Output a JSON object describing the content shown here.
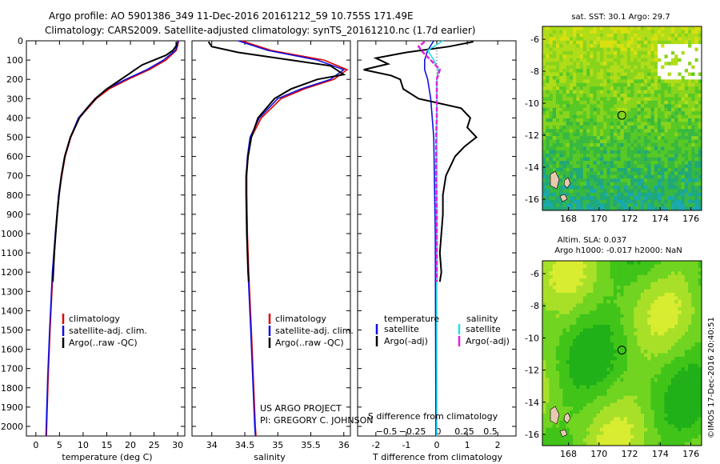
{
  "header": {
    "line1": "Argo profile: AO 5901386_349 11-Dec-2016 20161212_59 10.755S 171.49E",
    "line2": "Climatology: CARS2009. Satellite-adjusted climatology: synTS_20161210.nc (1.7d earlier)"
  },
  "colors": {
    "climatology": "#e00000",
    "satellite": "#1010e0",
    "argo": "#000000",
    "sal_satellite": "#20e0e8",
    "sal_argo": "#e020e0"
  },
  "chart_data": [
    {
      "type": "line",
      "name": "temperature",
      "xlabel": "temperature (deg C)",
      "xlim": [
        -2,
        31.5
      ],
      "ylim": [
        2050,
        0
      ],
      "xticks": [
        0,
        5,
        10,
        15,
        20,
        25,
        30
      ],
      "yticks": [
        0,
        100,
        200,
        300,
        400,
        500,
        600,
        700,
        800,
        900,
        1000,
        1100,
        1200,
        1300,
        1400,
        1500,
        1600,
        1700,
        1800,
        1900,
        2000
      ],
      "legend": [
        "climatology",
        "satellite-adj. clim.",
        "Argo(..raw -QC)"
      ],
      "series": [
        {
          "name": "climatology",
          "color_key": "climatology",
          "depth": [
            0,
            25,
            50,
            100,
            150,
            200,
            250,
            300,
            400,
            500,
            600,
            700,
            800,
            1000,
            1200,
            1500,
            1750,
            2000,
            2050
          ],
          "values": [
            30.2,
            30.0,
            29.7,
            27.5,
            24.0,
            19.5,
            15.5,
            12.8,
            9.2,
            7.4,
            6.2,
            5.5,
            4.9,
            4.2,
            3.6,
            3.0,
            2.6,
            2.3,
            2.25
          ]
        },
        {
          "name": "satellite-adj. clim.",
          "color_key": "satellite",
          "depth": [
            0,
            25,
            50,
            100,
            150,
            200,
            250,
            300,
            400,
            500,
            600,
            700,
            800,
            1000,
            1200,
            1500,
            1750,
            2000,
            2050
          ],
          "values": [
            30.1,
            29.9,
            29.5,
            27.0,
            23.5,
            19.0,
            15.0,
            12.5,
            9.0,
            7.3,
            6.1,
            5.4,
            4.8,
            4.1,
            3.5,
            2.9,
            2.5,
            2.2,
            2.15
          ]
        },
        {
          "name": "Argo(..raw -QC)",
          "color_key": "argo",
          "depth": [
            5,
            25,
            50,
            75,
            100,
            125,
            150,
            175,
            200,
            250,
            300,
            350,
            400,
            500,
            600,
            700,
            800,
            900,
            1000,
            1100,
            1200,
            1250
          ],
          "values": [
            29.7,
            29.7,
            29.0,
            27.5,
            25.0,
            22.5,
            21.0,
            19.5,
            18.0,
            15.0,
            12.6,
            10.8,
            9.2,
            7.3,
            6.1,
            5.4,
            4.9,
            4.5,
            4.2,
            3.9,
            3.7,
            3.6
          ]
        }
      ]
    },
    {
      "type": "line",
      "name": "salinity",
      "xlabel": "salinity",
      "xlim": [
        33.7,
        36.1
      ],
      "ylim": [
        2050,
        0
      ],
      "xticks": [
        34,
        34.5,
        35,
        35.5,
        36
      ],
      "legend": [
        "climatology",
        "satellite-adj. clim.",
        "Argo(..raw -QC)"
      ],
      "series": [
        {
          "name": "climatology",
          "color_key": "climatology",
          "depth": [
            0,
            50,
            100,
            150,
            200,
            250,
            300,
            400,
            500,
            600,
            700,
            800,
            1000,
            1200,
            1500,
            2000,
            2050
          ],
          "values": [
            34.45,
            34.9,
            35.7,
            36.05,
            35.85,
            35.4,
            35.05,
            34.75,
            34.6,
            34.55,
            34.53,
            34.53,
            34.54,
            34.56,
            34.6,
            34.66,
            34.67
          ]
        },
        {
          "name": "satellite-adj. clim.",
          "color_key": "satellite",
          "depth": [
            0,
            50,
            100,
            150,
            200,
            250,
            300,
            400,
            500,
            600,
            700,
            800,
            1000,
            1200,
            1500,
            2000,
            2050
          ],
          "values": [
            34.4,
            34.85,
            35.6,
            36.0,
            35.8,
            35.35,
            35.0,
            34.72,
            34.58,
            34.54,
            34.52,
            34.52,
            34.53,
            34.55,
            34.59,
            34.65,
            34.66
          ]
        },
        {
          "name": "Argo(..raw -QC)",
          "color_key": "argo",
          "depth": [
            5,
            30,
            60,
            100,
            130,
            175,
            200,
            250,
            300,
            400,
            500,
            600,
            700,
            800,
            1000,
            1200,
            1250
          ],
          "values": [
            33.95,
            34.0,
            34.4,
            35.2,
            35.8,
            36.0,
            35.6,
            35.2,
            34.95,
            34.7,
            34.6,
            34.55,
            34.52,
            34.52,
            34.53,
            34.55,
            34.56
          ]
        }
      ]
    },
    {
      "type": "line",
      "name": "difference",
      "xlabel_top": "S difference from climatology",
      "xlabel": "T difference from climatology",
      "xlim": [
        -2.6,
        2.6
      ],
      "ylim": [
        2050,
        0
      ],
      "xticks": [
        -2,
        -1,
        0,
        1,
        2
      ],
      "xtick_labels": [
        "-2",
        "-1",
        "0",
        "1",
        "2"
      ],
      "sticks": [
        -0.5,
        -0.25,
        0,
        0.25,
        0.5
      ],
      "stick_labels": [
        "−0.5",
        "−0.25",
        "0",
        "0.25",
        "0.5"
      ],
      "legend_titles": [
        "temperature",
        "salinity"
      ],
      "legend": [
        "satellite",
        "Argo(-adj)",
        "satellite",
        "Argo(-adj)"
      ],
      "series": [
        {
          "name": "T satellite",
          "color_key": "satellite",
          "depth": [
            0,
            50,
            100,
            150,
            200,
            300,
            500,
            1000,
            2000,
            2050
          ],
          "values": [
            -0.1,
            -0.3,
            -0.4,
            -0.4,
            -0.3,
            -0.2,
            -0.1,
            -0.05,
            -0.03,
            -0.03
          ]
        },
        {
          "name": "T Argo(-adj)",
          "color_key": "argo",
          "depth": [
            5,
            30,
            60,
            90,
            120,
            150,
            180,
            200,
            250,
            300,
            350,
            400,
            450,
            500,
            550,
            600,
            700,
            800,
            900,
            1000,
            1100,
            1200,
            1250
          ],
          "values": [
            1.2,
            0.4,
            -1.0,
            -2.0,
            -1.6,
            -2.4,
            -1.5,
            -1.2,
            -1.1,
            -0.6,
            0.8,
            1.1,
            1.0,
            1.3,
            0.9,
            0.6,
            0.3,
            0.2,
            0.2,
            0.15,
            0.1,
            0.15,
            0.1
          ]
        },
        {
          "name": "S satellite",
          "color_key": "sal_satellite",
          "depth": [
            0,
            50,
            100,
            150,
            200,
            300,
            500,
            1000,
            2000,
            2050
          ],
          "values": [
            0.2,
            -0.3,
            -0.1,
            0.05,
            0.0,
            0.0,
            0.0,
            0.0,
            0.0,
            0.0
          ]
        },
        {
          "name": "S Argo(-adj)",
          "color_key": "sal_argo",
          "depth": [
            5,
            30,
            60,
            100,
            150,
            200,
            300,
            400,
            500,
            700,
            900,
            1100,
            1250
          ],
          "values": [
            -0.4,
            -0.6,
            -0.45,
            -0.2,
            0.1,
            0.0,
            0.0,
            0.0,
            -0.02,
            -0.02,
            0.0,
            0.0,
            0.0
          ]
        }
      ]
    },
    {
      "type": "heatmap",
      "name": "sst-map",
      "title": "sat. SST: 30.1 Argo: 29.7",
      "xlim": [
        166.3,
        176.7
      ],
      "ylim": [
        -16.7,
        -5.2
      ],
      "xticks": [
        168,
        170,
        172,
        174,
        176
      ],
      "yticks": [
        -6,
        -8,
        -10,
        -12,
        -14,
        -16
      ],
      "marker": {
        "lon": 171.49,
        "lat": -10.755
      }
    },
    {
      "type": "heatmap",
      "name": "sla-map",
      "title_line1": "Altim. SLA: 0.037",
      "title_line2": "Argo h1000: -0.017 h2000: NaN",
      "xlim": [
        166.3,
        176.7
      ],
      "ylim": [
        -16.7,
        -5.2
      ],
      "xticks": [
        168,
        170,
        172,
        174,
        176
      ],
      "yticks": [
        -6,
        -8,
        -10,
        -12,
        -14,
        -16
      ],
      "marker": {
        "lon": 171.49,
        "lat": -10.755
      }
    }
  ],
  "credits": {
    "project": "US ARGO PROJECT",
    "pi": "PI: GREGORY C. JOHNSON",
    "stamp": "©IMOS 17-Dec-2016 20:40:51"
  }
}
